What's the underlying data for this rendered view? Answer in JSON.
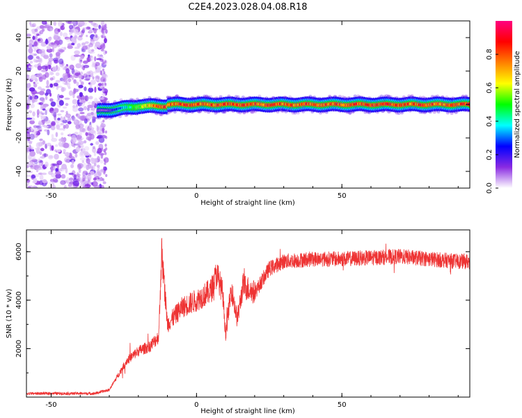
{
  "title": "C2E4.2023.028.04.08.R18",
  "chart_data": [
    {
      "type": "heatmap",
      "xlabel": "Height of straight line (km)",
      "ylabel": "Frequency (Hz)",
      "xlim": [
        -58.5,
        94
      ],
      "ylim": [
        -50,
        50
      ],
      "xticks": [
        -50,
        0,
        50
      ],
      "yticks": [
        -40,
        -20,
        0,
        20,
        40
      ],
      "colorbar": {
        "label": "Normalized spectral amplitude",
        "range": [
          0,
          1
        ],
        "ticks": [
          "0.0",
          "0.2",
          "0.4",
          "0.6",
          "0.8"
        ],
        "colors": [
          "#ffffff",
          "#8a2be2",
          "#0000ff",
          "#00ffff",
          "#00ff00",
          "#ffff00",
          "#ff8000",
          "#ff0000",
          "#ff0080"
        ]
      },
      "noise_region_x": [
        -58.5,
        -31
      ],
      "signal_band": {
        "x_start": -34,
        "x_end": 94,
        "center_freq": 0,
        "peak_amplitude": 0.9
      }
    },
    {
      "type": "line",
      "xlabel": "Height of straight line (km)",
      "ylabel": "SNR (10 * v/v)",
      "xlim": [
        -58.5,
        94
      ],
      "ylim": [
        0,
        6900
      ],
      "xticks": [
        -50,
        0,
        50
      ],
      "yticks": [
        2000,
        4000,
        6000
      ],
      "color": "#ee3333",
      "keypoints": {
        "x": [
          -58.5,
          -35,
          -30,
          -27,
          -24,
          -20,
          -16,
          -13,
          -12,
          -10,
          -5,
          0,
          5,
          7,
          9,
          10,
          12,
          14,
          16,
          20,
          25,
          30,
          40,
          50,
          60,
          70,
          80,
          90,
          94
        ],
        "y": [
          150,
          150,
          300,
          900,
          1500,
          1900,
          2100,
          2500,
          6000,
          3000,
          3700,
          4000,
          4400,
          5100,
          4300,
          2600,
          4500,
          3200,
          4600,
          4300,
          5300,
          5600,
          5700,
          5700,
          5750,
          5800,
          5700,
          5600,
          5600
        ]
      }
    }
  ]
}
